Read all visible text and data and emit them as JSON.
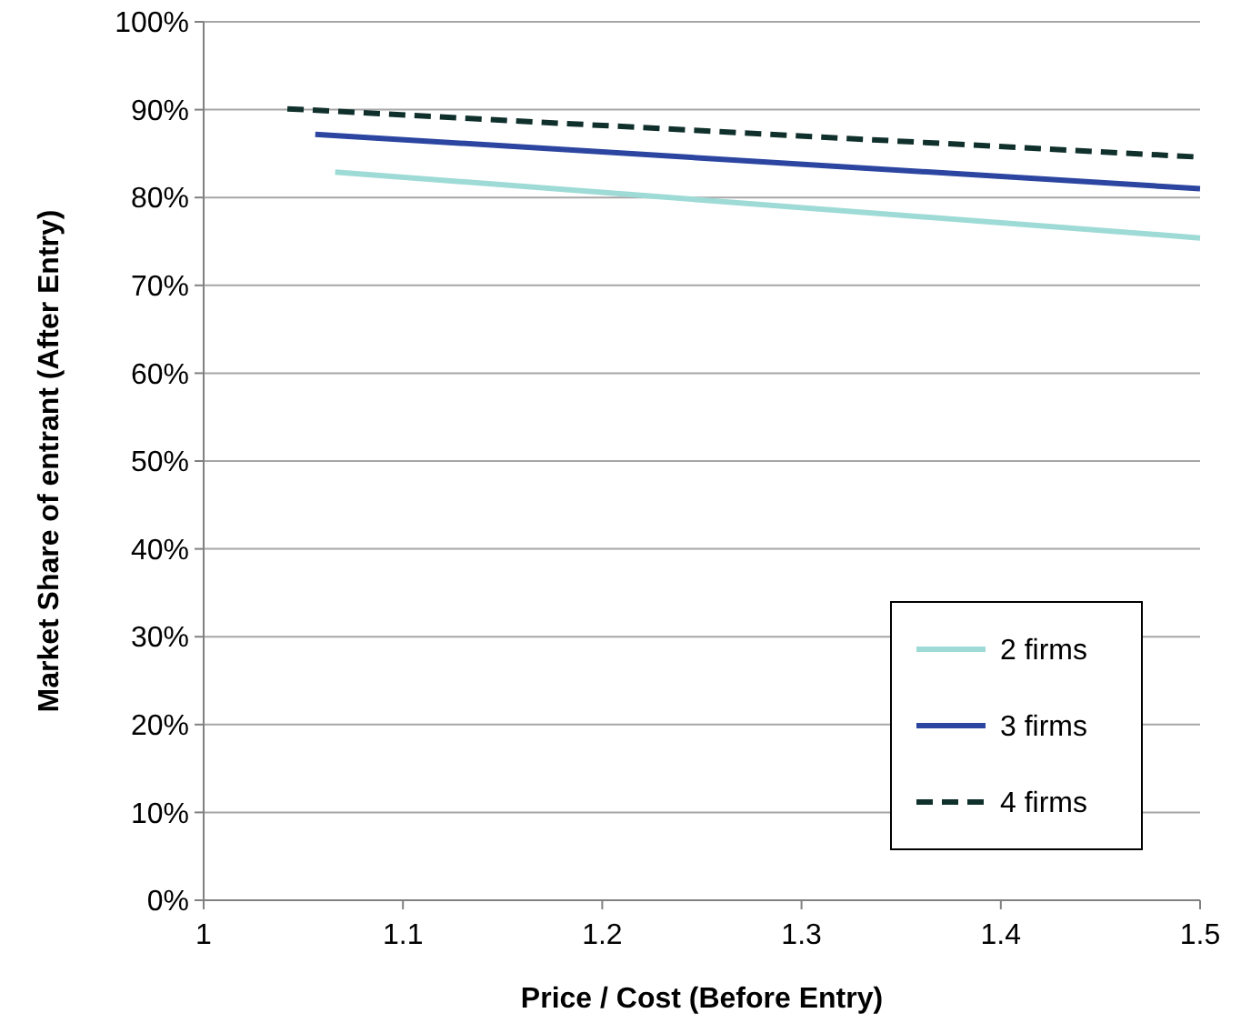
{
  "chart_data": {
    "type": "line",
    "xlabel": "Price / Cost (Before Entry)",
    "ylabel": "Market Share of entrant (After Entry)",
    "xlim": [
      1,
      1.5
    ],
    "xticks": [
      1,
      1.1,
      1.2,
      1.3,
      1.4,
      1.5
    ],
    "ylim": [
      0,
      100
    ],
    "yticks": [
      {
        "value": 0,
        "label": "0%"
      },
      {
        "value": 10,
        "label": "10%"
      },
      {
        "value": 20,
        "label": "20%"
      },
      {
        "value": 30,
        "label": "30%"
      },
      {
        "value": 40,
        "label": "40%"
      },
      {
        "value": 50,
        "label": "50%"
      },
      {
        "value": 60,
        "label": "60%"
      },
      {
        "value": 70,
        "label": "70%"
      },
      {
        "value": 80,
        "label": "80%"
      },
      {
        "value": 90,
        "label": "90%"
      },
      {
        "value": 100,
        "label": "100%"
      }
    ],
    "grid": "y",
    "legend": "bottom right",
    "marker": "none",
    "series": [
      {
        "name": "2 firms",
        "color": "#9edbd6",
        "x": [
          1.066,
          1.5
        ],
        "values": [
          82.9,
          75.4
        ],
        "line_style": "solid"
      },
      {
        "name": "3 firms",
        "color": "#2b45a0",
        "x": [
          1.056,
          1.5
        ],
        "values": [
          87.2,
          81.0
        ],
        "line_style": "solid"
      },
      {
        "name": "4 firms",
        "color": "#10302c",
        "x": [
          1.042,
          1.5
        ],
        "values": [
          90.1,
          84.6
        ],
        "line_style": "dashed"
      }
    ]
  }
}
